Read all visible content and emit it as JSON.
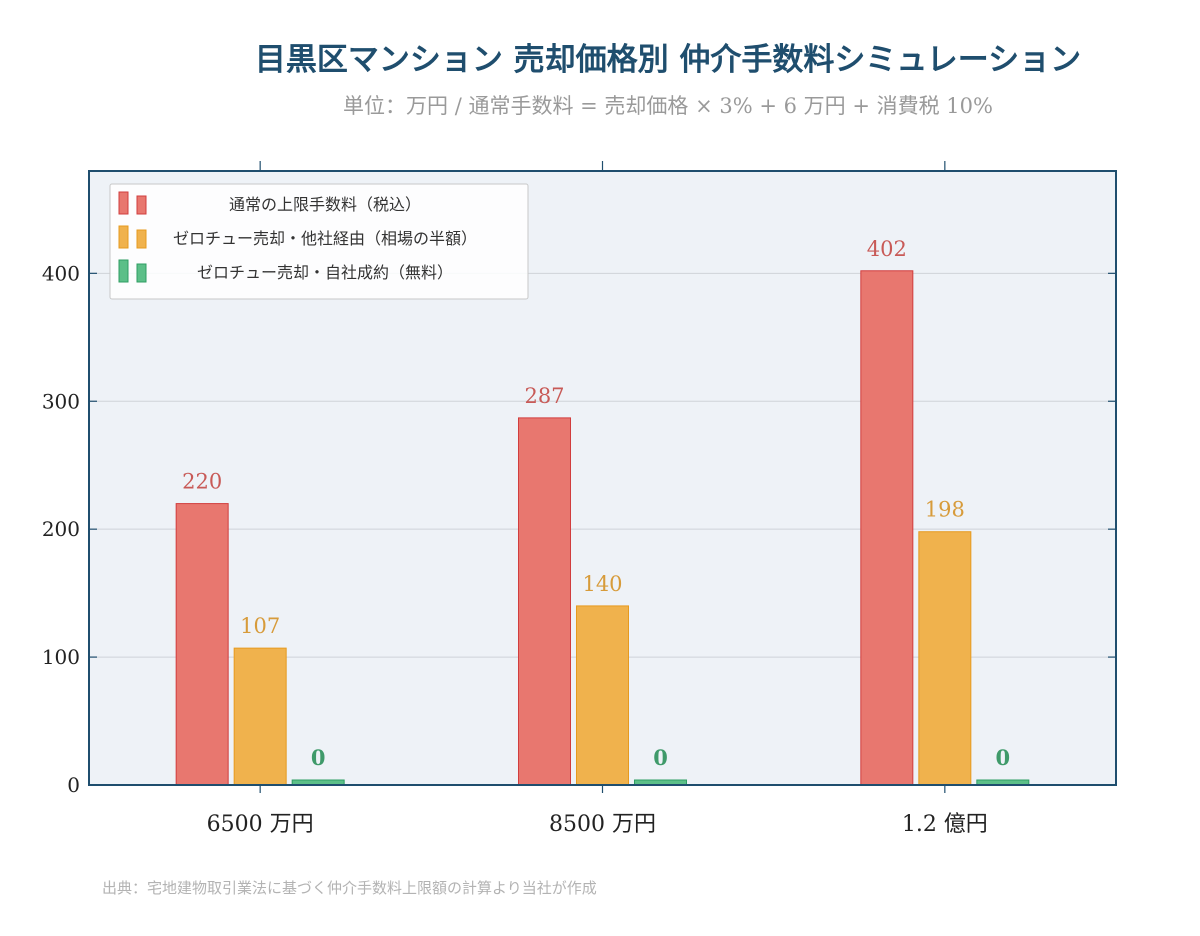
{
  "header": {
    "title": "目黒区マンション 売却価格別 仲介手数料シミュレーション",
    "subtitle": "単位：万円 / 通常手数料 = 売却価格 × 3% + 6 万円 + 消費税 10%"
  },
  "footer": {
    "source": "出典：宅地建物取引業法に基づく仲介手数料上限額の計算より当社が作成"
  },
  "chart_data": {
    "type": "bar",
    "title": "目黒区マンション 売却価格別 仲介手数料シミュレーション",
    "subtitle": "単位：万円 / 通常手数料 = 売却価格 × 3% + 6 万円 + 消費税 10%",
    "xlabel": "",
    "ylabel": "",
    "categories": [
      "6500 万円",
      "8500 万円",
      "1.2 億円"
    ],
    "ylim": [
      0,
      480
    ],
    "yticks": [
      0,
      100,
      200,
      300,
      400
    ],
    "grid": true,
    "legend_position": "top-left",
    "series": [
      {
        "name": "通常の上限手数料（税込）",
        "values": [
          220,
          287,
          402
        ],
        "labels": [
          "220",
          "287",
          "402"
        ],
        "color": "#e8776f",
        "stroke": "#d13d3d",
        "label_color": "#c85a57"
      },
      {
        "name": "ゼロチュー売却・他社経由（相場の半額）",
        "values": [
          107,
          140,
          198
        ],
        "labels": [
          "107",
          "140",
          "198"
        ],
        "color": "#f0b24d",
        "stroke": "#e69a1f",
        "label_color": "#d79b3a"
      },
      {
        "name": "ゼロチュー売却・自社成約（無料）",
        "values": [
          0,
          0,
          0
        ],
        "labels": [
          "0",
          "0",
          "0"
        ],
        "color": "#5cbf88",
        "stroke": "#2e9d63",
        "label_color": "#3f9a6a"
      }
    ],
    "colors": {
      "plot_background": "#eef2f7",
      "frame": "#1f4e6e",
      "grid": "#cfd3d8"
    }
  }
}
